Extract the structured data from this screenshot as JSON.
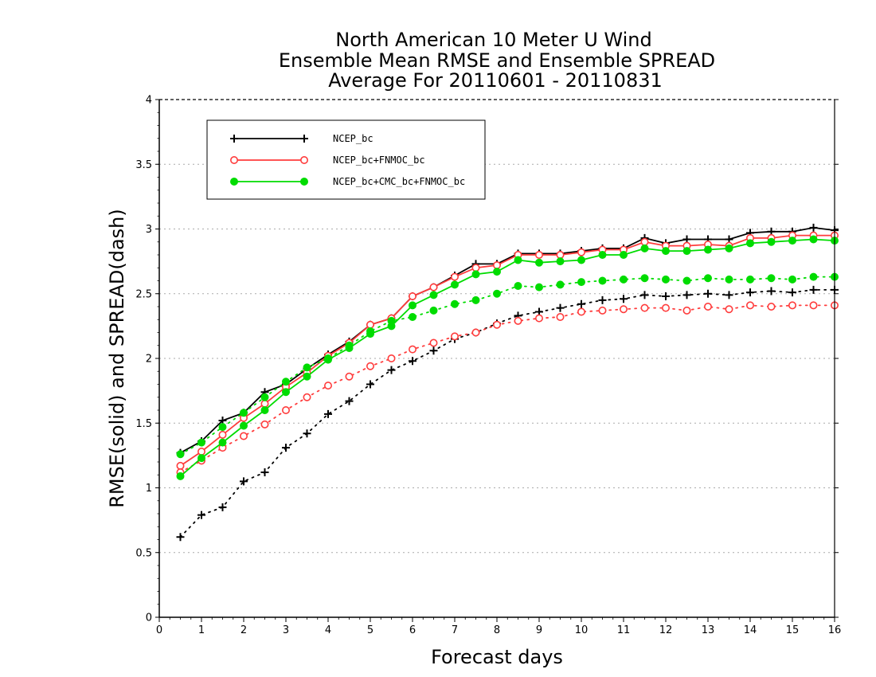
{
  "chart_data": {
    "type": "line",
    "title_lines": [
      "North American 10 Meter U Wind",
      "Ensemble Mean RMSE and Ensemble SPREAD",
      "Average For 20110601 - 20110831"
    ],
    "xlabel": "Forecast days",
    "ylabel": "RMSE(solid) and SPREAD(dash)",
    "xlim": [
      0,
      16
    ],
    "ylim": [
      0,
      4
    ],
    "x_ticks": [
      "0",
      "1",
      "2",
      "3",
      "4",
      "5",
      "6",
      "7",
      "8",
      "9",
      "10",
      "11",
      "12",
      "13",
      "14",
      "15",
      "16"
    ],
    "y_ticks": [
      "0",
      "0.5",
      "1",
      "1.5",
      "2",
      "2.5",
      "3",
      "3.5",
      "4"
    ],
    "grid": "horizontal dotted",
    "legend_position": "top-left",
    "x": [
      0.5,
      1,
      1.5,
      2,
      2.5,
      3,
      3.5,
      4,
      4.5,
      5,
      5.5,
      6,
      6.5,
      7,
      7.5,
      8,
      8.5,
      9,
      9.5,
      10,
      10.5,
      11,
      11.5,
      12,
      12.5,
      13,
      13.5,
      14,
      14.5,
      15,
      15.5,
      16
    ],
    "series": [
      {
        "name": "NCEP_bc",
        "color": "#000000",
        "marker": "plus",
        "rmse": [
          1.27,
          1.36,
          1.52,
          1.58,
          1.74,
          1.8,
          1.92,
          2.03,
          2.13,
          2.26,
          2.31,
          2.48,
          2.55,
          2.64,
          2.73,
          2.73,
          2.81,
          2.81,
          2.81,
          2.83,
          2.85,
          2.85,
          2.93,
          2.89,
          2.92,
          2.92,
          2.92,
          2.97,
          2.98,
          2.98,
          3.01,
          2.99
        ],
        "spread": [
          0.62,
          0.79,
          0.85,
          1.05,
          1.12,
          1.31,
          1.42,
          1.57,
          1.67,
          1.8,
          1.91,
          1.98,
          2.06,
          2.15,
          2.2,
          2.27,
          2.33,
          2.36,
          2.39,
          2.42,
          2.45,
          2.46,
          2.49,
          2.48,
          2.49,
          2.5,
          2.49,
          2.51,
          2.52,
          2.51,
          2.53,
          2.53
        ]
      },
      {
        "name": "NCEP_bc+FNMOC_bc",
        "color": "#ff3c3c",
        "marker": "open-circle",
        "rmse": [
          1.17,
          1.28,
          1.41,
          1.54,
          1.65,
          1.78,
          1.89,
          2.02,
          2.12,
          2.26,
          2.31,
          2.48,
          2.55,
          2.63,
          2.7,
          2.72,
          2.8,
          2.8,
          2.8,
          2.82,
          2.84,
          2.84,
          2.9,
          2.87,
          2.87,
          2.88,
          2.87,
          2.93,
          2.93,
          2.95,
          2.95,
          2.95
        ],
        "spread": [
          1.12,
          1.21,
          1.31,
          1.4,
          1.49,
          1.6,
          1.7,
          1.79,
          1.86,
          1.94,
          2.0,
          2.07,
          2.12,
          2.17,
          2.2,
          2.26,
          2.29,
          2.31,
          2.32,
          2.36,
          2.37,
          2.38,
          2.39,
          2.39,
          2.37,
          2.4,
          2.38,
          2.41,
          2.4,
          2.41,
          2.41,
          2.41
        ]
      },
      {
        "name": "NCEP_bc+CMC_bc+FNMOC_bc",
        "color": "#00dc00",
        "marker": "filled-circle",
        "rmse": [
          1.09,
          1.23,
          1.35,
          1.48,
          1.6,
          1.74,
          1.86,
          1.99,
          2.08,
          2.19,
          2.25,
          2.41,
          2.49,
          2.57,
          2.65,
          2.67,
          2.76,
          2.74,
          2.75,
          2.76,
          2.8,
          2.8,
          2.85,
          2.83,
          2.83,
          2.84,
          2.85,
          2.89,
          2.9,
          2.91,
          2.92,
          2.91
        ],
        "spread": [
          1.26,
          1.35,
          1.47,
          1.58,
          1.7,
          1.82,
          1.93,
          2.0,
          2.1,
          2.21,
          2.29,
          2.32,
          2.37,
          2.42,
          2.45,
          2.5,
          2.56,
          2.55,
          2.57,
          2.59,
          2.6,
          2.61,
          2.62,
          2.61,
          2.6,
          2.62,
          2.61,
          2.61,
          2.62,
          2.61,
          2.63,
          2.63
        ]
      }
    ]
  }
}
